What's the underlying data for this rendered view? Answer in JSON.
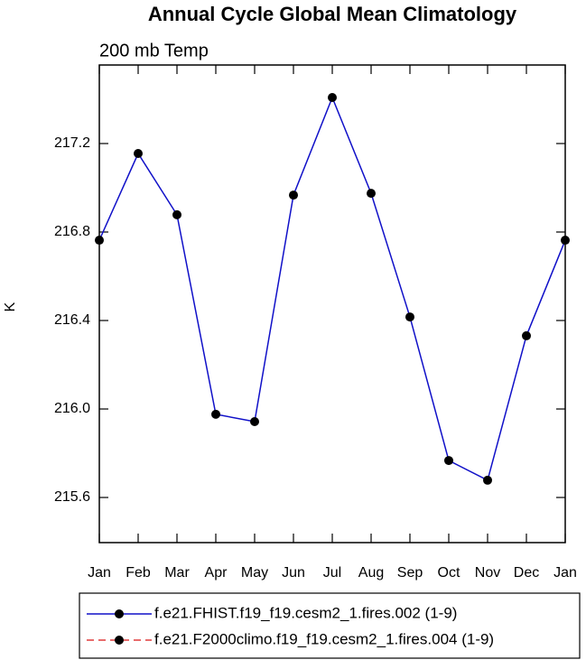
{
  "chart_data": {
    "type": "line",
    "title": "Annual Cycle Global Mean Climatology",
    "subtitle": "200 mb Temp",
    "y_label": "K",
    "categories": [
      "Jan",
      "Feb",
      "Mar",
      "Apr",
      "May",
      "Jun",
      "Jul",
      "Aug",
      "Sep",
      "Oct",
      "Nov",
      "Dec",
      "Jan"
    ],
    "series": [
      {
        "name": "f.e21.FHIST.f19_f19.cesm2_1.fires.002 (1-9)",
        "color": "#1010c8",
        "marker_color": "#000000",
        "dash": false,
        "values": [
          216.763,
          217.155,
          216.878,
          215.976,
          215.943,
          216.967,
          217.408,
          216.975,
          216.416,
          215.767,
          215.678,
          216.331,
          216.763
        ]
      },
      {
        "name": "f.e21.F2000climo.f19_f19.cesm2_1.fires.004 (1-9)",
        "color": "#e03c3c",
        "marker_color": "#000000",
        "dash": true,
        "values": [
          null,
          null,
          null,
          null,
          null,
          null,
          null,
          null,
          null,
          null,
          null,
          null,
          null
        ]
      }
    ],
    "ylim": [
      215.396,
      217.555
    ],
    "yticks": [
      215.6,
      {
        "value": 216,
        "label": "216.0"
      },
      216.4,
      216.8,
      217.2
    ]
  }
}
